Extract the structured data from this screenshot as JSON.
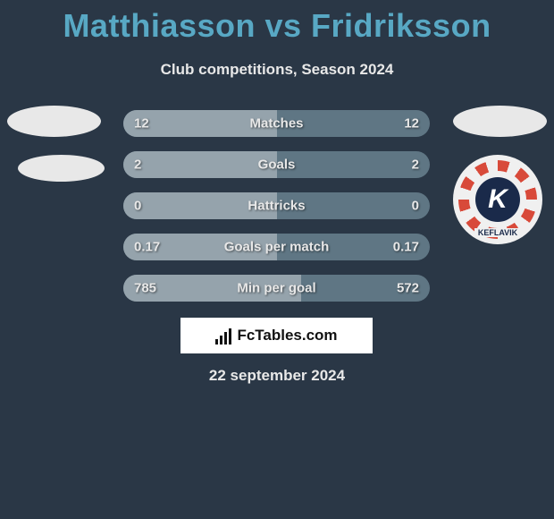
{
  "header": {
    "title": "Matthiasson vs Fridriksson",
    "subtitle": "Club competitions, Season 2024"
  },
  "team_right": {
    "letter": "K",
    "name": "KEFLAVIK"
  },
  "stats": {
    "rows": [
      {
        "label": "Matches",
        "left": "12",
        "right": "12",
        "left_pct": 50
      },
      {
        "label": "Goals",
        "left": "2",
        "right": "2",
        "left_pct": 50
      },
      {
        "label": "Hattricks",
        "left": "0",
        "right": "0",
        "left_pct": 50
      },
      {
        "label": "Goals per match",
        "left": "0.17",
        "right": "0.17",
        "left_pct": 50
      },
      {
        "label": "Min per goal",
        "left": "785",
        "right": "572",
        "left_pct": 58
      }
    ],
    "bar_left_color": "#95a3ac",
    "bar_right_color": "#5f7684",
    "text_color": "#e8e8e8"
  },
  "brand": {
    "name": "FcTables.com"
  },
  "date": "22 september 2024",
  "colors": {
    "background": "#2a3746",
    "title": "#58a8c4"
  }
}
